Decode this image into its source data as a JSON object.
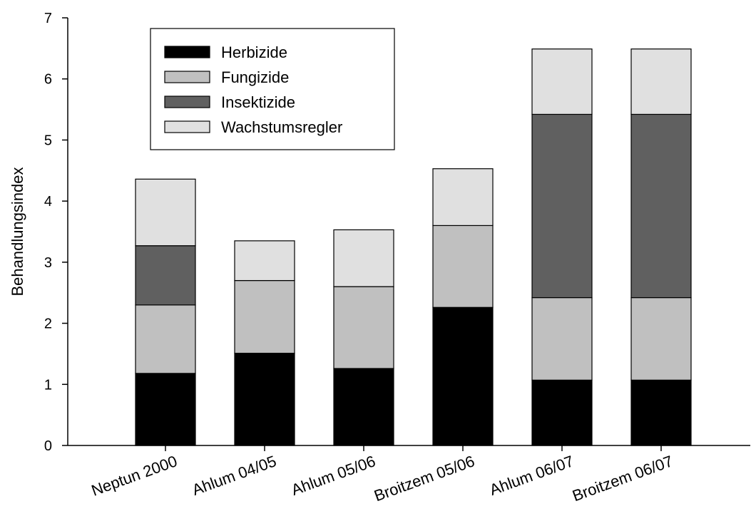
{
  "chart_data": {
    "type": "bar",
    "stacked": true,
    "title": "",
    "xlabel": "",
    "ylabel": "Behandlungsindex",
    "ylim": [
      0,
      7
    ],
    "yticks": [
      "0",
      "1",
      "2",
      "3",
      "4",
      "5",
      "6",
      "7"
    ],
    "grid": false,
    "legend_position": "top-left",
    "categories": [
      "Neptun 2000",
      "Ahlum 04/05",
      "Ahlum 05/06",
      "Broitzem 05/06",
      "Ahlum 06/07",
      "Broitzem 06/07"
    ],
    "series": [
      {
        "name": "Herbizide",
        "color": "#000000",
        "values": [
          1.18,
          1.51,
          1.26,
          2.26,
          1.07,
          1.07
        ]
      },
      {
        "name": "Fungizide",
        "color": "#c0c0c0",
        "values": [
          1.12,
          1.19,
          1.34,
          1.34,
          1.35,
          1.35
        ]
      },
      {
        "name": "Insektizide",
        "color": "#606060",
        "values": [
          0.97,
          0.0,
          0.0,
          0.0,
          3.0,
          3.0
        ]
      },
      {
        "name": "Wachstumsregler",
        "color": "#e0e0e0",
        "values": [
          1.09,
          0.65,
          0.93,
          0.93,
          1.07,
          1.07
        ]
      }
    ]
  }
}
